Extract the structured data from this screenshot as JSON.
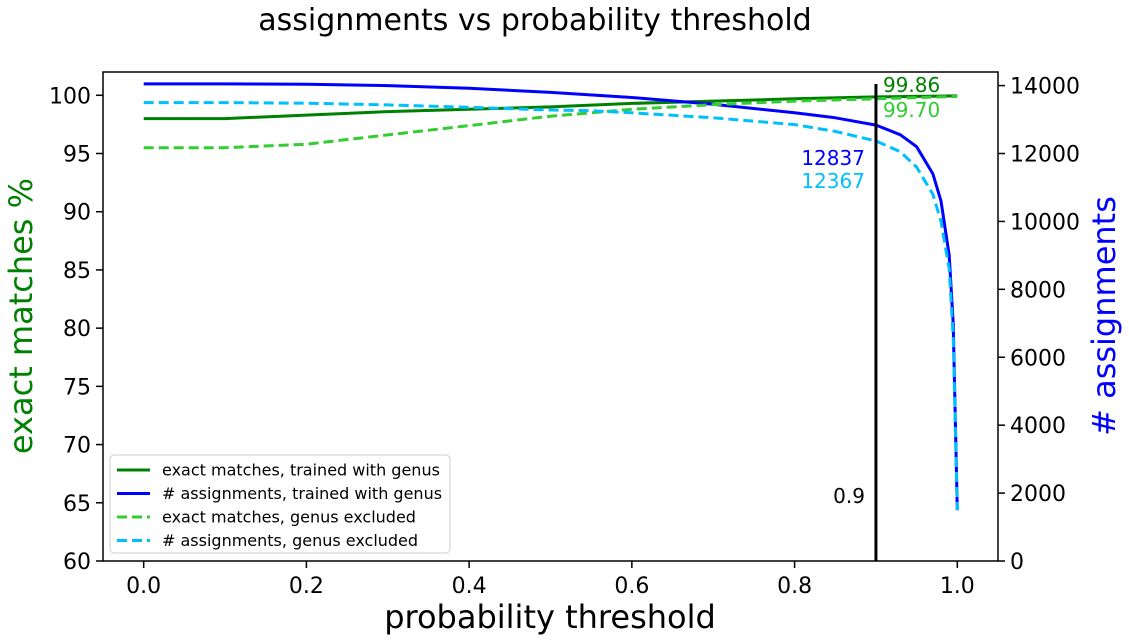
{
  "chart_data": {
    "type": "line",
    "title": "assignments vs probability threshold",
    "xlabel": "probability threshold",
    "ylabel_left": "exact matches %",
    "ylabel_right": "# assignments",
    "xlim": [
      -0.05,
      1.05
    ],
    "ylim_left": [
      60,
      102
    ],
    "ylim_right": [
      0,
      14400
    ],
    "x_ticks": [
      "0.0",
      "0.2",
      "0.4",
      "0.6",
      "0.8",
      "1.0"
    ],
    "y_left_ticks": [
      "60",
      "65",
      "70",
      "75",
      "80",
      "85",
      "90",
      "95",
      "100"
    ],
    "y_right_ticks": [
      "0",
      "2000",
      "4000",
      "6000",
      "8000",
      "10000",
      "12000",
      "14000"
    ],
    "grid": false,
    "legend_position": "lower-left",
    "series": [
      {
        "name": "exact matches, trained with genus",
        "axis": "left",
        "color": "#008000",
        "dash": "solid",
        "x": [
          0.0,
          0.1,
          0.2,
          0.3,
          0.4,
          0.5,
          0.6,
          0.7,
          0.8,
          0.9,
          0.95,
          1.0
        ],
        "y": [
          98.0,
          98.0,
          98.3,
          98.6,
          98.8,
          99.0,
          99.3,
          99.5,
          99.7,
          99.86,
          99.9,
          99.95
        ]
      },
      {
        "name": "# assignments, trained with genus",
        "axis": "right",
        "color": "#0000ff",
        "dash": "solid",
        "x": [
          0.0,
          0.1,
          0.2,
          0.3,
          0.4,
          0.5,
          0.6,
          0.7,
          0.8,
          0.85,
          0.9,
          0.93,
          0.95,
          0.97,
          0.98,
          0.99,
          0.995,
          1.0
        ],
        "y": [
          14050,
          14050,
          14040,
          14000,
          13920,
          13800,
          13650,
          13450,
          13200,
          13050,
          12837,
          12550,
          12200,
          11400,
          10600,
          9000,
          7000,
          1500
        ]
      },
      {
        "name": "exact matches, genus excluded",
        "axis": "left",
        "color": "#32cd32",
        "dash": "dashed",
        "x": [
          0.0,
          0.1,
          0.2,
          0.3,
          0.4,
          0.5,
          0.6,
          0.7,
          0.8,
          0.9,
          0.95,
          1.0
        ],
        "y": [
          95.5,
          95.5,
          95.8,
          96.6,
          97.4,
          98.2,
          98.8,
          99.2,
          99.5,
          99.7,
          99.8,
          99.9
        ]
      },
      {
        "name": "# assignments, genus excluded",
        "axis": "right",
        "color": "#00bfff",
        "dash": "dashed",
        "x": [
          0.0,
          0.1,
          0.2,
          0.3,
          0.4,
          0.5,
          0.55,
          0.6,
          0.7,
          0.8,
          0.85,
          0.9,
          0.93,
          0.95,
          0.97,
          0.98,
          0.99,
          0.995,
          1.0
        ],
        "y": [
          13500,
          13500,
          13480,
          13430,
          13360,
          13280,
          13260,
          13200,
          13050,
          12850,
          12650,
          12367,
          12050,
          11600,
          10800,
          10000,
          8600,
          6600,
          1500
        ]
      }
    ],
    "vertical_line": {
      "x": 0.9,
      "label": "0.9",
      "color": "#000000"
    },
    "annotations": [
      {
        "text": "99.86",
        "color": "#008000"
      },
      {
        "text": "99.70",
        "color": "#32cd32"
      },
      {
        "text": "12837",
        "color": "#0000ff"
      },
      {
        "text": "12367",
        "color": "#00bfff"
      }
    ]
  }
}
